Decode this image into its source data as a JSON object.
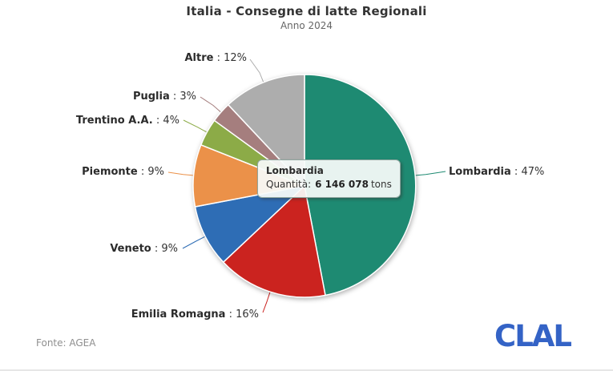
{
  "header": {
    "title": "Italia - Consegne di latte Regionali",
    "subtitle": "Anno 2024"
  },
  "chart_data": {
    "type": "pie",
    "title": "Italia - Consegne di latte Regionali",
    "subtitle": "Anno 2024",
    "direction": "clockwise",
    "start_angle_deg": 0,
    "label_separator": " : ",
    "slices": [
      {
        "name": "Lombardia",
        "percent": 47,
        "percent_label": "47%",
        "color": "#1e8a72",
        "quantity_tons": 6146078
      },
      {
        "name": "Emilia Romagna",
        "percent": 16,
        "percent_label": "16%",
        "color": "#cb231f"
      },
      {
        "name": "Veneto",
        "percent": 9,
        "percent_label": "9%",
        "color": "#2e6db5"
      },
      {
        "name": "Piemonte",
        "percent": 9,
        "percent_label": "9%",
        "color": "#eb9149"
      },
      {
        "name": "Trentino A.A.",
        "percent": 4,
        "percent_label": "4%",
        "color": "#8cab47"
      },
      {
        "name": "Puglia",
        "percent": 3,
        "percent_label": "3%",
        "color": "#a57e7e"
      },
      {
        "name": "Altre",
        "percent": 12,
        "percent_label": "12%",
        "color": "#adadad"
      }
    ],
    "tooltip": {
      "name": "Lombardia",
      "quantity_label": "Quantità:",
      "quantity_value": "6 146 078",
      "quantity_unit": "tons"
    }
  },
  "footer": {
    "source": "Fonte: AGEA"
  },
  "logo": {
    "text": "CLAL",
    "color": "#3463c6"
  }
}
